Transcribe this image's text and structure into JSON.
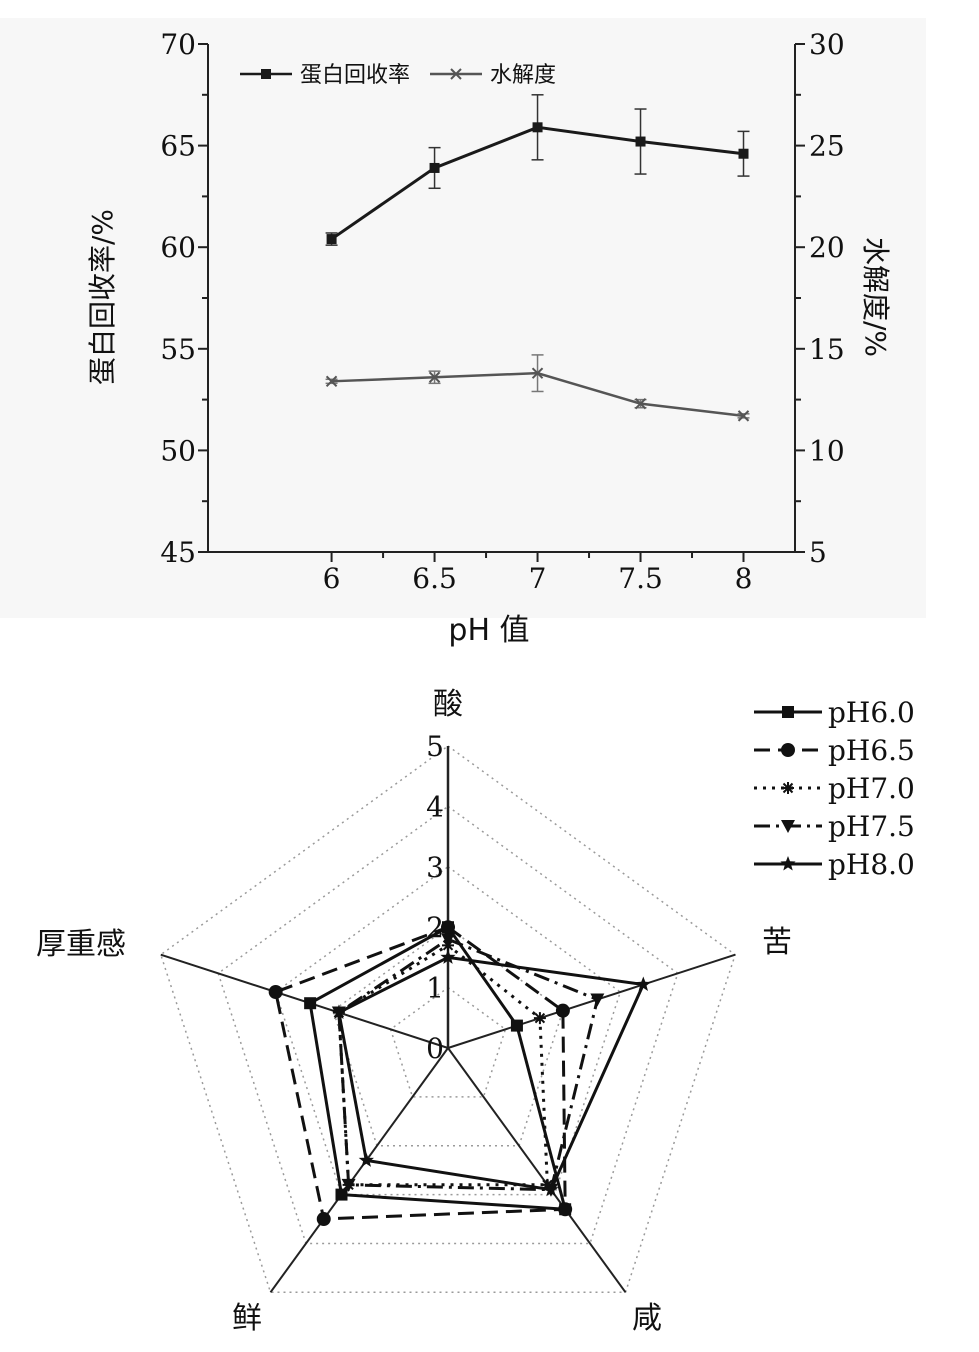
{
  "chart_data": [
    {
      "type": "line",
      "xlabel": "pH 值",
      "ylabel": "蛋白回收率/%",
      "y2label": "水解度/%",
      "x": [
        6,
        6.5,
        7,
        7.5,
        8
      ],
      "xlim": [
        5.4,
        8.25
      ],
      "ylim": [
        45,
        70
      ],
      "y2lim": [
        5,
        30
      ],
      "xticks": [
        "6",
        "6.5",
        "7",
        "7.5",
        "8"
      ],
      "yticks": [
        "45",
        "50",
        "55",
        "60",
        "65",
        "70"
      ],
      "y2ticks": [
        "5",
        "10",
        "15",
        "20",
        "25",
        "30"
      ],
      "legend_position": "top-left",
      "grid": false,
      "series": [
        {
          "name": "蛋白回收率",
          "axis": "left",
          "marker": "square",
          "color": "#1a1a1a",
          "values": [
            60.4,
            63.9,
            65.9,
            65.2,
            64.6
          ],
          "errors": [
            0.3,
            1.0,
            1.6,
            1.6,
            1.1
          ]
        },
        {
          "name": "水解度",
          "axis": "right",
          "marker": "x",
          "color": "#555555",
          "values": [
            13.4,
            13.6,
            13.8,
            12.3,
            11.7
          ],
          "errors": [
            0.1,
            0.3,
            0.9,
            0.2,
            0.1
          ]
        }
      ]
    },
    {
      "type": "radar",
      "axes": [
        "酸",
        "苦",
        "咸",
        "鲜",
        "厚重感"
      ],
      "rmax": 5,
      "rticks": [
        "0",
        "1",
        "2",
        "3",
        "4",
        "5"
      ],
      "legend_position": "top-right",
      "series": [
        {
          "name": "pH6.0",
          "marker": "square",
          "dash": "solid",
          "values": [
            2.0,
            1.2,
            3.3,
            3.0,
            2.4
          ]
        },
        {
          "name": "pH6.5",
          "marker": "circle",
          "dash": "dashed",
          "values": [
            2.0,
            2.0,
            3.3,
            3.5,
            3.0
          ]
        },
        {
          "name": "pH7.0",
          "marker": "asterisk",
          "dash": "dotted",
          "values": [
            1.7,
            1.6,
            2.8,
            2.8,
            1.9
          ]
        },
        {
          "name": "pH7.5",
          "marker": "triangle-down",
          "dash": "dashdot",
          "values": [
            1.8,
            2.6,
            2.9,
            2.8,
            1.9
          ]
        },
        {
          "name": "pH8.0",
          "marker": "star",
          "dash": "solid",
          "values": [
            1.5,
            3.4,
            2.9,
            2.3,
            1.9
          ]
        }
      ]
    }
  ]
}
